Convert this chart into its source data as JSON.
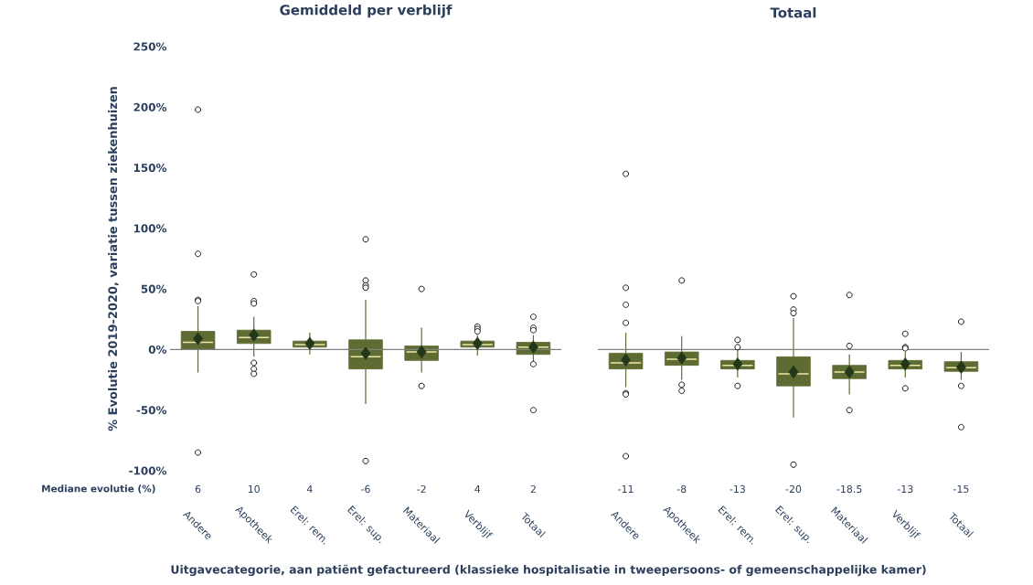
{
  "chart_data": [
    {
      "type": "box",
      "title": "Gemiddeld per verblijf",
      "ylabel": "% Evolutie 2019-2020, variatie tussen ziekenhuizen",
      "xlabel": "Uitgavecategorie, aan patiënt gefactureerd (klassieke hospitalisatie in tweepersoons- of gemeenschappelijke kamer)",
      "categories": [
        "Andere",
        "Apotheek",
        "Erel: rem.",
        "Erel: sup.",
        "Materiaal",
        "Verblijf",
        "Totaal"
      ],
      "series": [
        {
          "color": "#5e6b32",
          "boxes": [
            {
              "low": -19,
              "q1": 0,
              "median": 6,
              "q3": 15,
              "high": 36,
              "mean": 9,
              "outliers": [
                198,
                79,
                41,
                40,
                -85
              ]
            },
            {
              "low": -6,
              "q1": 5,
              "median": 10,
              "q3": 16,
              "high": 27,
              "mean": 12,
              "outliers": [
                62,
                40,
                38,
                -11,
                -16,
                -20
              ]
            },
            {
              "low": -4,
              "q1": 2,
              "median": 4,
              "q3": 7,
              "high": 14,
              "mean": 5
            },
            {
              "low": -45,
              "q1": -16,
              "median": -6,
              "q3": 8,
              "high": 41,
              "mean": -3,
              "outliers": [
                91,
                57,
                53,
                51,
                -92
              ]
            },
            {
              "low": -19,
              "q1": -9,
              "median": -2,
              "q3": 3,
              "high": 18,
              "mean": -2,
              "outliers": [
                50,
                -30
              ]
            },
            {
              "low": -5,
              "q1": 2,
              "median": 4,
              "q3": 7,
              "high": 12,
              "mean": 5,
              "outliers": [
                19,
                17,
                15
              ]
            },
            {
              "low": -10,
              "q1": -4,
              "median": 2,
              "q3": 6,
              "high": 12,
              "mean": 2,
              "outliers": [
                27,
                18,
                16,
                -12,
                -50
              ]
            }
          ],
          "value_labels": [
            "6",
            "10",
            "4",
            "-6",
            "-2",
            "4",
            "2"
          ]
        }
      ],
      "ylim": [
        -100,
        250
      ],
      "yticks": [
        {
          "value": -100,
          "label": "-100%"
        },
        {
          "value": -50,
          "label": "-50%"
        },
        {
          "value": 0,
          "label": "0%"
        },
        {
          "value": 50,
          "label": "50%"
        },
        {
          "value": 100,
          "label": "100%"
        },
        {
          "value": 150,
          "label": "150%"
        },
        {
          "value": 200,
          "label": "200%"
        },
        {
          "value": 250,
          "label": "250%"
        }
      ],
      "ref_lines": [
        {
          "axis": "y",
          "value": 0,
          "color": "#808080"
        }
      ],
      "annotations": [
        "Mediane evolutie (%)"
      ]
    },
    {
      "type": "box",
      "title": "Totaal",
      "categories": [
        "Andere",
        "Apotheek",
        "Erel: rem.",
        "Erel: sup.",
        "Materiaal",
        "Verblijf",
        "Totaal"
      ],
      "series": [
        {
          "color": "#5e6b32",
          "boxes": [
            {
              "low": -31,
              "q1": -16,
              "median": -11,
              "q3": -3,
              "high": 14,
              "mean": -8.5,
              "outliers": [
                145,
                51,
                37,
                22,
                -36,
                -37,
                -88
              ]
            },
            {
              "low": -25,
              "q1": -13,
              "median": -8,
              "q3": -2,
              "high": 11,
              "mean": -7,
              "outliers": [
                57,
                -29,
                -34
              ]
            },
            {
              "low": -23,
              "q1": -16,
              "median": -13,
              "q3": -9,
              "high": 3,
              "mean": -12,
              "outliers": [
                8,
                2,
                -30
              ]
            },
            {
              "low": -56,
              "q1": -30,
              "median": -20,
              "q3": -6,
              "high": 26,
              "mean": -18.5,
              "outliers": [
                44,
                33,
                30,
                -95
              ]
            },
            {
              "low": -37,
              "q1": -24,
              "median": -18.5,
              "q3": -13,
              "high": -4,
              "mean": -18.5,
              "outliers": [
                45,
                3,
                -50
              ]
            },
            {
              "low": -23,
              "q1": -16,
              "median": -13,
              "q3": -9,
              "high": -2,
              "mean": -12,
              "outliers": [
                13,
                2,
                1,
                -32
              ]
            },
            {
              "low": -25,
              "q1": -18,
              "median": -15,
              "q3": -10,
              "high": -2,
              "mean": -14.5,
              "outliers": [
                23,
                -30,
                -64
              ]
            }
          ],
          "value_labels": [
            "-11",
            "-8",
            "-13",
            "-20",
            "-18.5",
            "-13",
            "-15"
          ]
        }
      ],
      "ylim": [
        -100,
        250
      ],
      "yticks": [
        {
          "value": -100,
          "label": null
        },
        {
          "value": -50,
          "label": null
        },
        {
          "value": 0,
          "label": null
        },
        {
          "value": 50,
          "label": null
        },
        {
          "value": 100,
          "label": null
        },
        {
          "value": 150,
          "label": null
        },
        {
          "value": 200,
          "label": null
        },
        {
          "value": 250,
          "label": null
        }
      ],
      "tick_labels": "x",
      "ref_lines": [
        {
          "axis": "y",
          "value": 0,
          "color": "#808080"
        }
      ]
    }
  ]
}
